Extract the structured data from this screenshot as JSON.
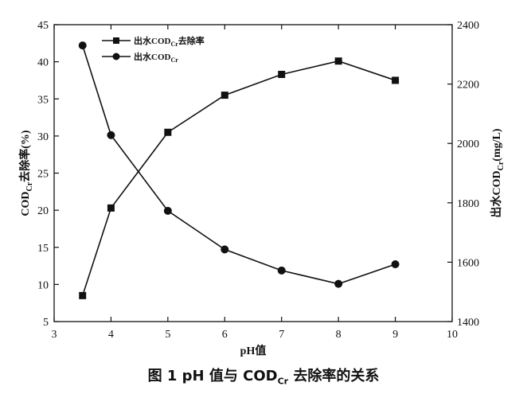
{
  "chart_data": {
    "type": "line",
    "x": [
      3.5,
      4,
      5,
      6,
      7,
      8,
      9
    ],
    "xlim": [
      3,
      10
    ],
    "xticks": [
      3,
      4,
      5,
      6,
      7,
      8,
      9,
      10
    ],
    "xlabel": "pH值",
    "left_axis": {
      "label_main": "COD",
      "label_sub": "Cr",
      "label_rest": "去除率(%)",
      "ylim": [
        5,
        45
      ],
      "ticks": [
        5,
        10,
        15,
        20,
        25,
        30,
        35,
        40,
        45
      ]
    },
    "right_axis": {
      "label_main": "出水COD",
      "label_sub": "Cr",
      "label_rest": "(mg/L)",
      "ylim": [
        1400,
        2400
      ],
      "ticks": [
        1400,
        1600,
        1800,
        2000,
        2200,
        2400
      ]
    },
    "series": [
      {
        "name": "removal",
        "legend_main": "出水COD",
        "legend_sub": "Cr",
        "legend_rest": "去除率",
        "axis": "left",
        "marker": "square",
        "values": [
          8.5,
          20.3,
          30.5,
          35.5,
          38.3,
          40.1,
          37.5
        ]
      },
      {
        "name": "effluent",
        "legend_main": "出水COD",
        "legend_sub": "Cr",
        "legend_rest": "",
        "axis": "right",
        "marker": "circle",
        "values": [
          2330,
          2028,
          1773,
          1643,
          1572,
          1527,
          1593
        ]
      }
    ],
    "legend_position": "top-left"
  },
  "caption": {
    "prefix": "图 1  pH 值与 COD",
    "sub": "Cr",
    "suffix": " 去除率的关系"
  }
}
